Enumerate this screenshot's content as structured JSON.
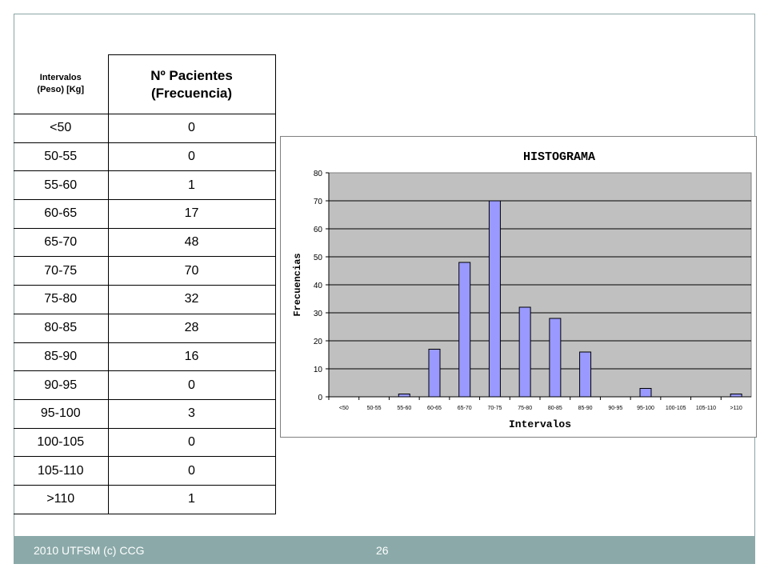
{
  "table": {
    "header_interval": [
      "Intervalos",
      "(Peso) [Kg]"
    ],
    "header_frequency": [
      "Nº Pacientes",
      "(Frecuencia)"
    ],
    "rows": [
      {
        "interval": "<50",
        "frequency": "0"
      },
      {
        "interval": "50-55",
        "frequency": "0"
      },
      {
        "interval": "55-60",
        "frequency": "1"
      },
      {
        "interval": "60-65",
        "frequency": "17"
      },
      {
        "interval": "65-70",
        "frequency": "48"
      },
      {
        "interval": "70-75",
        "frequency": "70"
      },
      {
        "interval": "75-80",
        "frequency": "32"
      },
      {
        "interval": "80-85",
        "frequency": "28"
      },
      {
        "interval": "85-90",
        "frequency": "16"
      },
      {
        "interval": "90-95",
        "frequency": "0"
      },
      {
        "interval": "95-100",
        "frequency": "3"
      },
      {
        "interval": "100-105",
        "frequency": "0"
      },
      {
        "interval": "105-110",
        "frequency": "0"
      },
      {
        "interval": ">110",
        "frequency": "1"
      }
    ]
  },
  "chart_data": {
    "type": "bar",
    "title": "HISTOGRAMA",
    "xlabel": "Intervalos",
    "ylabel": "Frecuencias",
    "categories": [
      "<50",
      "50-55",
      "55-60",
      "60-65",
      "65-70",
      "70-75",
      "75-80",
      "80-85",
      "85-90",
      "90-95",
      "95-100",
      "100-105",
      "105-110",
      ">110"
    ],
    "values": [
      0,
      0,
      1,
      17,
      48,
      70,
      32,
      28,
      16,
      0,
      3,
      0,
      0,
      1
    ],
    "ylim": [
      0,
      80
    ],
    "yticks": [
      0,
      10,
      20,
      30,
      40,
      50,
      60,
      70,
      80
    ],
    "grid": true,
    "legend": "none",
    "colors": {
      "bar": "#9999ff",
      "plot_background": "#c0c0c0",
      "bar_border": "#000000"
    }
  },
  "footer": {
    "left_text": "2010 UTFSM (c) CCG",
    "page_number": "26"
  }
}
